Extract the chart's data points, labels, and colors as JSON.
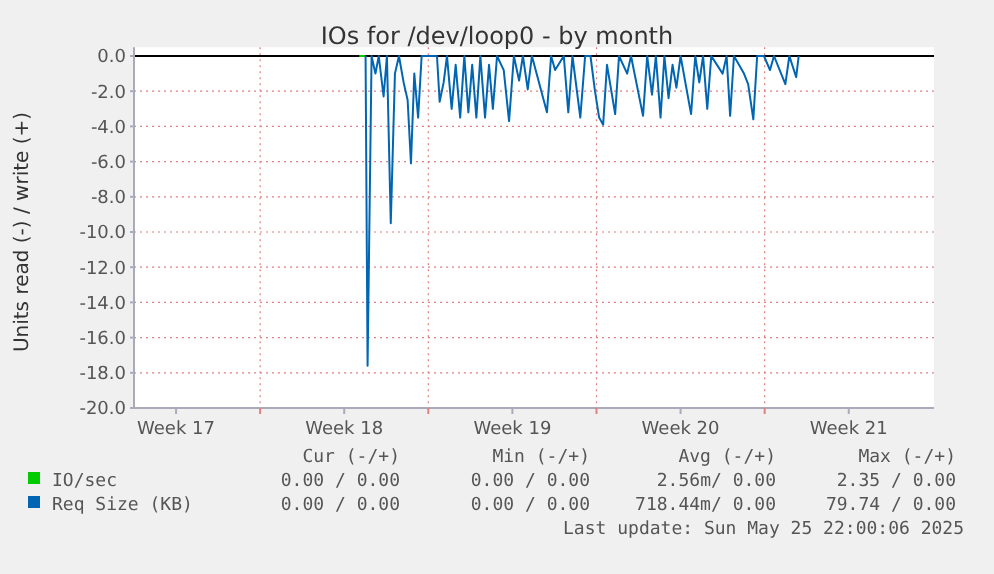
{
  "chart_data": {
    "type": "line",
    "title": "IOs for /dev/loop0 - by month",
    "ylabel": "Units read (-) / write (+)",
    "xlim": [
      "2025-04-22T18:00",
      "2025-05-26T01:10"
    ],
    "ylim": [
      -20,
      0.5
    ],
    "xticks": [
      {
        "value": "2025-04-24T12:00",
        "label": "Week 17"
      },
      {
        "value": "2025-04-28",
        "label": null
      },
      {
        "value": "2025-05-01T12:00",
        "label": "Week 18"
      },
      {
        "value": "2025-05-05",
        "label": null
      },
      {
        "value": "2025-05-08T12:00",
        "label": "Week 19"
      },
      {
        "value": "2025-05-12",
        "label": null
      },
      {
        "value": "2025-05-15T12:00",
        "label": "Week 20"
      },
      {
        "value": "2025-05-19",
        "label": null
      },
      {
        "value": "2025-05-22T12:00",
        "label": "Week 21"
      }
    ],
    "yticks": [
      {
        "value": 0,
        "label": "0.0"
      },
      {
        "value": -2,
        "label": "-2.0"
      },
      {
        "value": -4,
        "label": "-4.0"
      },
      {
        "value": -6,
        "label": "-6.0"
      },
      {
        "value": -8,
        "label": "-8.0"
      },
      {
        "value": -10,
        "label": "-10.0"
      },
      {
        "value": -12,
        "label": "-12.0"
      },
      {
        "value": -14,
        "label": "-14.0"
      },
      {
        "value": -16,
        "label": "-16.0"
      },
      {
        "value": -18,
        "label": "-18.0"
      },
      {
        "value": -20,
        "label": "-20.0"
      }
    ],
    "grid": true,
    "legend": "bottom",
    "ref_lines": [
      {
        "axis": "y",
        "value": 0,
        "color": "#000000"
      }
    ],
    "series": [
      {
        "name": "IO/sec",
        "color": "#00cc00",
        "x": [
          "2025-05-02T03:00",
          "2025-05-02T09:00"
        ],
        "values": [
          0,
          0
        ]
      },
      {
        "name": "Req Size (KB)",
        "color": "#0066b3",
        "x": [
          "2025-05-02T09:20",
          "2025-05-02T11:20",
          "2025-05-02T15:20",
          "2025-05-02T19:10",
          "2025-05-02T22:30",
          "2025-05-03T03:20",
          "2025-05-03T06:40",
          "2025-05-03T10:30",
          "2025-05-03T14:40",
          "2025-05-03T18:40",
          "2025-05-03T23:20",
          "2025-05-04T03:20",
          "2025-05-04T06:40",
          "2025-05-04T10:00",
          "2025-05-04T13:50",
          "2025-05-04T17:20",
          "2025-05-05T08:40",
          "2025-05-05T11:20",
          "2025-05-05T15:20",
          "2025-05-05T18:40",
          "2025-05-05T23:20",
          "2025-05-06T03:20",
          "2025-05-06T07:50",
          "2025-05-06T12:00",
          "2025-05-06T16:00",
          "2025-05-06T19:50",
          "2025-05-07T00:00",
          "2025-05-07T04:00",
          "2025-05-07T08:40",
          "2025-05-07T12:40",
          "2025-05-07T16:30",
          "2025-05-07T20:40",
          "2025-05-08T03:20",
          "2025-05-08T08:40",
          "2025-05-08T13:30",
          "2025-05-08T18:40",
          "2025-05-08T22:30",
          "2025-05-09T03:20",
          "2025-05-09T07:30",
          "2025-05-09T22:30",
          "2025-05-10T02:40",
          "2025-05-10T06:40",
          "2025-05-10T15:20",
          "2025-05-10T19:50",
          "2025-05-11T00:00",
          "2025-05-11T07:50",
          "2025-05-11T12:40",
          "2025-05-11T18:00",
          "2025-05-11T22:30",
          "2025-05-12T02:40",
          "2025-05-12T06:40",
          "2025-05-12T10:30",
          "2025-05-12T18:40",
          "2025-05-12T22:30",
          "2025-05-13T06:40",
          "2025-05-13T10:30",
          "2025-05-13T22:30",
          "2025-05-14T02:40",
          "2025-05-14T07:30",
          "2025-05-14T11:20",
          "2025-05-14T16:00",
          "2025-05-14T19:50",
          "2025-05-15T00:00",
          "2025-05-15T04:00",
          "2025-05-15T07:50",
          "2025-05-15T12:00",
          "2025-05-15T22:30",
          "2025-05-16T02:40",
          "2025-05-16T06:40",
          "2025-05-16T10:30",
          "2025-05-16T14:40",
          "2025-05-16T18:40",
          "2025-05-17T06:00",
          "2025-05-17T10:00",
          "2025-05-17T13:30",
          "2025-05-17T17:20",
          "2025-05-18T03:20",
          "2025-05-18T07:30",
          "2025-05-18T12:40",
          "2025-05-18T16:30",
          "2025-05-18T23:20",
          "2025-05-19T05:20",
          "2025-05-19T09:20",
          "2025-05-19T20:40",
          "2025-05-20T00:40",
          "2025-05-20T07:30",
          "2025-05-20T10:00"
        ],
        "values": [
          0,
          -17.6,
          0,
          -1.0,
          0,
          -2.3,
          0,
          -9.5,
          -1.0,
          0,
          -1.5,
          -2.5,
          -6.1,
          -1.0,
          -3.5,
          0,
          0,
          -2.6,
          -1.5,
          0,
          -3.0,
          -0.5,
          -3.5,
          0,
          -3.2,
          -0.5,
          -3.5,
          0,
          -3.5,
          -0.5,
          -3.0,
          0,
          -0.8,
          -3.7,
          0,
          -1.4,
          0,
          -1.9,
          0,
          -3.2,
          0,
          -0.8,
          0,
          -3.2,
          0,
          -3.5,
          0,
          0,
          -2.0,
          -3.5,
          -3.9,
          -0.5,
          -3.3,
          0,
          -1.0,
          0,
          -3.4,
          0,
          -2.2,
          0,
          -3.5,
          0,
          -2.4,
          -0.5,
          -1.8,
          0,
          -3.3,
          0,
          -1.5,
          0,
          -3.0,
          0,
          -1.0,
          0,
          -3.4,
          0,
          -1.0,
          -1.6,
          -3.6,
          0,
          0,
          -0.8,
          0,
          -1.6,
          0,
          -1.2,
          0
        ]
      }
    ],
    "annotations": [
      "Cur (-/+)",
      "Min (-/+)",
      "Avg (-/+)",
      "Max (-/+)",
      "0.00 / 0.00",
      "0.00 / 0.00",
      "2.56m/ 0.00",
      "2.35 / 0.00",
      "0.00 / 0.00",
      "0.00 / 0.00",
      "718.44m/ 0.00",
      "79.74 / 0.00",
      "Last update: Sun May 25 22:00:06 2025"
    ]
  }
}
